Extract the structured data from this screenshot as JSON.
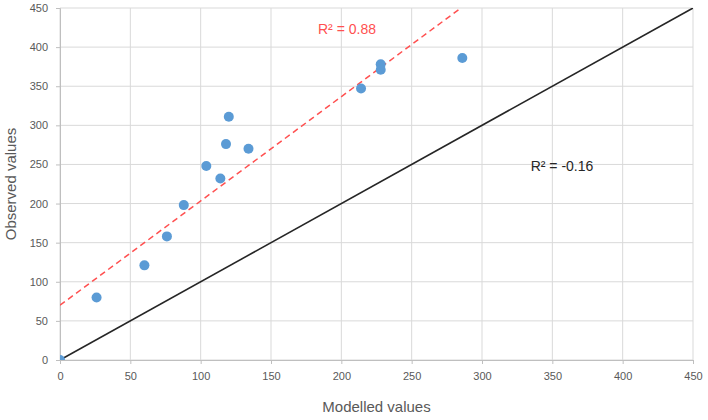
{
  "chart_data": {
    "type": "scatter",
    "x_label": "Modelled values",
    "y_label": "Observed values",
    "xlim": [
      0,
      450
    ],
    "ylim": [
      0,
      450
    ],
    "xticks": [
      0,
      50,
      100,
      150,
      200,
      250,
      300,
      350,
      400,
      450
    ],
    "yticks": [
      0,
      50,
      100,
      150,
      200,
      250,
      300,
      350,
      400,
      450
    ],
    "grid": true,
    "series": [
      {
        "type": "scatter",
        "color": "#5b9bd5",
        "marker": "circle",
        "x": [
          0,
          26,
          60,
          76,
          88,
          104,
          114,
          118,
          120,
          134,
          214,
          228,
          228,
          286
        ],
        "values": [
          0,
          80,
          121,
          158,
          198,
          248,
          232,
          276,
          311,
          270,
          347,
          378,
          371,
          386
        ]
      },
      {
        "type": "line",
        "color": "#ff5050",
        "line_style": "dashed",
        "x": [
          0,
          285
        ],
        "values": [
          70,
          450
        ],
        "annotation": "R² = 0.88"
      },
      {
        "type": "line",
        "color": "#262626",
        "line_style": "solid",
        "x": [
          0,
          450
        ],
        "values": [
          0,
          450
        ],
        "annotation": "R² = -0.16"
      }
    ]
  }
}
